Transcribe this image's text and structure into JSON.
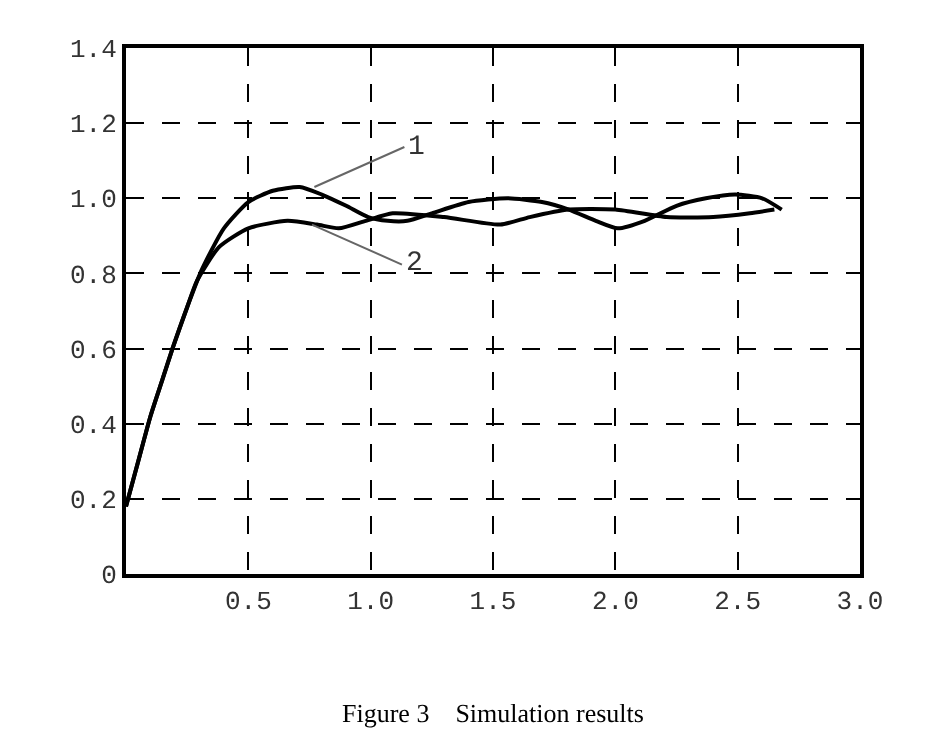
{
  "chart_data": {
    "type": "line",
    "series": [
      {
        "color": "#000000",
        "x": [
          0.0,
          0.05,
          0.1,
          0.15,
          0.19,
          0.25,
          0.31,
          0.4,
          0.5,
          0.6,
          0.71,
          0.8,
          0.9,
          0.99,
          1.07,
          1.15,
          1.25,
          1.4,
          1.56,
          1.7,
          1.81,
          1.92,
          2.01,
          2.12,
          2.25,
          2.37,
          2.49,
          2.6,
          2.68
        ],
        "values": [
          0.18,
          0.3,
          0.42,
          0.52,
          0.6,
          0.71,
          0.81,
          0.92,
          0.99,
          1.02,
          1.03,
          1.01,
          0.98,
          0.95,
          0.94,
          0.94,
          0.96,
          0.99,
          1.0,
          0.99,
          0.97,
          0.94,
          0.92,
          0.94,
          0.98,
          1.0,
          1.01,
          1.0,
          0.97
        ]
      },
      {
        "color": "#000000",
        "x": [
          0.0,
          0.05,
          0.1,
          0.15,
          0.19,
          0.25,
          0.29,
          0.38,
          0.5,
          0.66,
          0.78,
          0.87,
          0.98,
          1.09,
          1.3,
          1.53,
          1.65,
          1.81,
          2.0,
          2.21,
          2.4,
          2.55,
          2.65
        ],
        "values": [
          0.18,
          0.3,
          0.42,
          0.52,
          0.6,
          0.71,
          0.78,
          0.87,
          0.92,
          0.94,
          0.93,
          0.92,
          0.94,
          0.96,
          0.95,
          0.93,
          0.95,
          0.97,
          0.97,
          0.95,
          0.95,
          0.96,
          0.97
        ]
      }
    ],
    "xlim": [
      0,
      3.0
    ],
    "xticks": [
      0.5,
      {
        "value": 1.0,
        "label": "1.0"
      },
      1.5,
      {
        "value": 2.0,
        "label": "2.0"
      },
      2.5,
      {
        "value": 3.0,
        "label": "3.0"
      }
    ],
    "ylim": [
      0,
      1.4
    ],
    "yticks": [
      0,
      0.2,
      0.4,
      0.6,
      0.8,
      {
        "value": 1.0,
        "label": "1.0"
      },
      1.2,
      1.4
    ],
    "grid": true,
    "marker": "none",
    "line_style": "solid",
    "annotations": [
      {
        "text": "1",
        "x": 0.77,
        "y": 1.03
      },
      {
        "text": "2",
        "x": 0.76,
        "y": 0.93
      },
      "Figure 3    Simulation results"
    ]
  }
}
